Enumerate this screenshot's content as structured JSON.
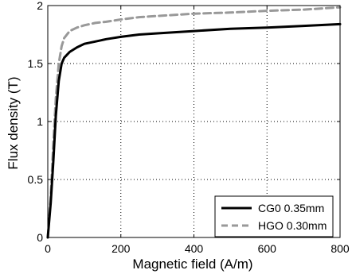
{
  "chart_data": {
    "type": "line",
    "title": "",
    "xlabel": "Magnetic field (A/m)",
    "ylabel": "Flux density (T)",
    "xlim": [
      0,
      800
    ],
    "ylim": [
      0,
      2
    ],
    "xticks": [
      0,
      200,
      400,
      600,
      800
    ],
    "yticks": [
      0,
      0.5,
      1,
      1.5,
      2
    ],
    "xtick_labels": [
      "0",
      "200",
      "400",
      "600",
      "800"
    ],
    "ytick_labels": [
      "0",
      "0.5",
      "1",
      "1.5",
      "2"
    ],
    "grid": "dotted",
    "legend_position": "bottom-right",
    "series": [
      {
        "name": "CG0 0.35mm",
        "color": "#000000",
        "style": "solid",
        "x": [
          0,
          8,
          15,
          22,
          30,
          38,
          45,
          60,
          80,
          100,
          130,
          160,
          200,
          250,
          300,
          400,
          500,
          600,
          700,
          800
        ],
        "y": [
          0,
          0.3,
          0.65,
          1.05,
          1.35,
          1.5,
          1.55,
          1.6,
          1.64,
          1.67,
          1.69,
          1.71,
          1.73,
          1.75,
          1.76,
          1.78,
          1.8,
          1.81,
          1.825,
          1.84
        ]
      },
      {
        "name": "HGO 0.30mm",
        "color": "#999999",
        "style": "dashed",
        "x": [
          0,
          8,
          15,
          22,
          30,
          38,
          45,
          60,
          80,
          100,
          130,
          160,
          200,
          250,
          300,
          400,
          500,
          600,
          700,
          800
        ],
        "y": [
          0,
          0.35,
          0.8,
          1.2,
          1.5,
          1.65,
          1.72,
          1.78,
          1.81,
          1.83,
          1.85,
          1.86,
          1.88,
          1.9,
          1.91,
          1.93,
          1.94,
          1.955,
          1.965,
          1.985
        ]
      }
    ]
  }
}
